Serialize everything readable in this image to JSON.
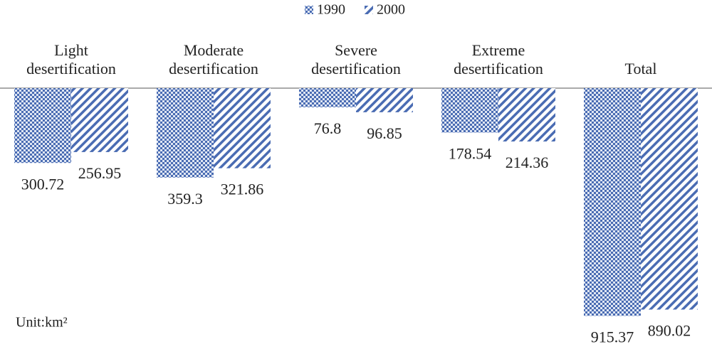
{
  "chart_data": {
    "type": "bar",
    "categories": [
      "Light desertification",
      "Moderate desertification",
      "Severe desertification",
      "Extreme desertification",
      "Total"
    ],
    "series": [
      {
        "name": "1990",
        "color": "#4a6cb3",
        "pattern": "checker",
        "values": [
          300.72,
          359.3,
          76.8,
          178.54,
          915.37
        ]
      },
      {
        "name": "2000",
        "color": "#4a6cb3",
        "pattern": "stripes",
        "values": [
          256.95,
          321.86,
          96.85,
          214.36,
          890.02
        ]
      }
    ],
    "annotation": "Unit:km²"
  }
}
